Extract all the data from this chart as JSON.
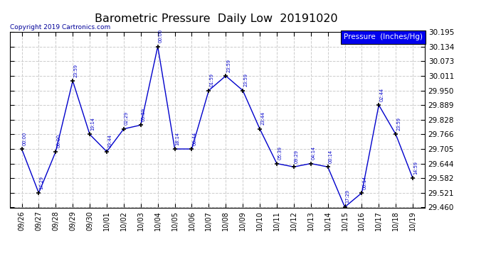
{
  "title": "Barometric Pressure  Daily Low  20191020",
  "copyright": "Copyright 2019 Cartronics.com",
  "legend_label": "Pressure  (Inches/Hg)",
  "ylim": [
    29.46,
    30.195
  ],
  "yticks": [
    30.195,
    30.134,
    30.073,
    30.011,
    29.95,
    29.889,
    29.828,
    29.766,
    29.705,
    29.644,
    29.582,
    29.521,
    29.46
  ],
  "dates": [
    "09/26",
    "09/27",
    "09/28",
    "09/29",
    "09/30",
    "10/01",
    "10/02",
    "10/03",
    "10/04",
    "10/05",
    "10/06",
    "10/07",
    "10/08",
    "10/09",
    "10/10",
    "10/11",
    "10/12",
    "10/13",
    "10/14",
    "10/15",
    "10/16",
    "10/17",
    "10/18",
    "10/19"
  ],
  "pressures": [
    29.705,
    29.521,
    29.694,
    29.99,
    29.766,
    29.694,
    29.789,
    29.805,
    30.134,
    29.705,
    29.705,
    29.95,
    30.011,
    29.95,
    29.789,
    29.644,
    29.63,
    29.644,
    29.63,
    29.462,
    29.521,
    29.889,
    29.766,
    29.582
  ],
  "time_labels": [
    "00:00",
    "17:29",
    "00:00",
    "23:59",
    "19:14",
    "19:44",
    "02:29",
    "05:59",
    "00:00",
    "18:14",
    "00:44",
    "01:59",
    "23:59",
    "23:59",
    "23:44",
    "05:39",
    "09:29",
    "04:14",
    "00:14",
    "17:29",
    "00:14",
    "02:44",
    "23:59",
    "14:59"
  ],
  "line_color": "#0000CC",
  "marker_color": "#000000",
  "legend_bg": "#0000EE",
  "legend_text_color": "#FFFFFF",
  "background_color": "#FFFFFF",
  "grid_color": "#CCCCCC",
  "title_color": "#000000",
  "copyright_color": "#000099",
  "label_color": "#0000CC",
  "figsize": [
    6.9,
    3.75
  ],
  "dpi": 100
}
